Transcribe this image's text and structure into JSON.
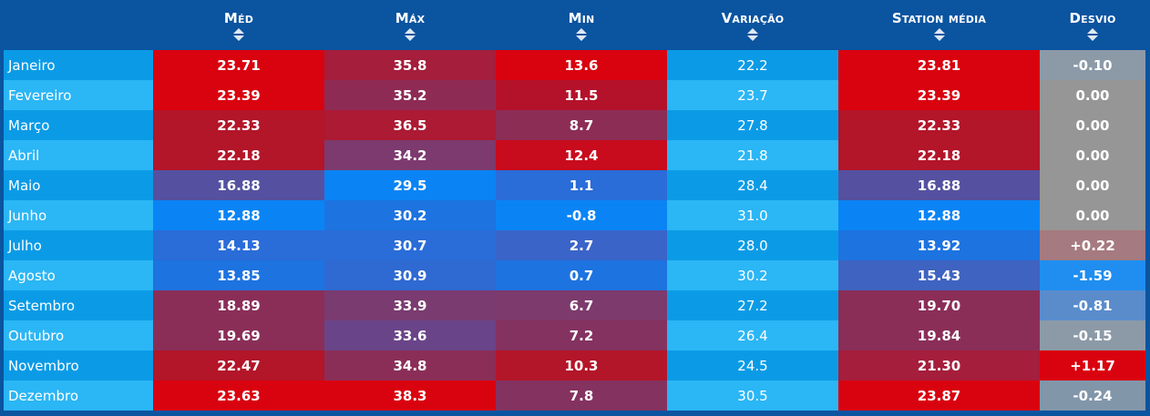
{
  "table": {
    "headers": {
      "med": "Méd",
      "max": "Máx",
      "min": "Min",
      "variacao": "Variação",
      "station": "Station média",
      "desvio": "Desvio"
    },
    "rows": [
      {
        "month": "Janeiro",
        "med": "23.71",
        "max": "35.8",
        "min": "13.6",
        "var": "22.2",
        "station": "23.81",
        "desvio": "-0.10",
        "colors": {
          "med": "#d9020f",
          "max": "#a51e3c",
          "min": "#d9020f",
          "station": "#d9020f",
          "desvio": "#8c9aa8"
        }
      },
      {
        "month": "Fevereiro",
        "med": "23.39",
        "max": "35.2",
        "min": "11.5",
        "var": "23.7",
        "station": "23.39",
        "desvio": "0.00",
        "colors": {
          "med": "#d9020f",
          "max": "#8e2b55",
          "min": "#b4122a",
          "station": "#d9020f",
          "desvio": "#969696"
        }
      },
      {
        "month": "Março",
        "med": "22.33",
        "max": "36.5",
        "min": "8.7",
        "var": "27.8",
        "station": "22.33",
        "desvio": "0.00",
        "colors": {
          "med": "#b31529",
          "max": "#ac1a33",
          "min": "#8c2d56",
          "station": "#b31529",
          "desvio": "#969696"
        }
      },
      {
        "month": "Abril",
        "med": "22.18",
        "max": "34.2",
        "min": "12.4",
        "var": "21.8",
        "station": "22.18",
        "desvio": "0.00",
        "colors": {
          "med": "#b31529",
          "max": "#7c3a6e",
          "min": "#c80b1d",
          "station": "#b31529",
          "desvio": "#969696"
        }
      },
      {
        "month": "Maio",
        "med": "16.88",
        "max": "29.5",
        "min": "1.1",
        "var": "28.4",
        "station": "16.88",
        "desvio": "0.00",
        "colors": {
          "med": "#5551a0",
          "max": "#0a84f5",
          "min": "#2a6cd8",
          "station": "#5551a0",
          "desvio": "#969696"
        }
      },
      {
        "month": "Junho",
        "med": "12.88",
        "max": "30.2",
        "min": "-0.8",
        "var": "31.0",
        "station": "12.88",
        "desvio": "0.00",
        "colors": {
          "med": "#0a84f5",
          "max": "#1d73e0",
          "min": "#0a84f5",
          "station": "#0a84f5",
          "desvio": "#969696"
        }
      },
      {
        "month": "Julho",
        "med": "14.13",
        "max": "30.7",
        "min": "2.7",
        "var": "28.0",
        "station": "13.92",
        "desvio": "+0.22",
        "colors": {
          "med": "#2a6cd8",
          "max": "#2a6cd8",
          "min": "#3a64c8",
          "station": "#1d73e0",
          "desvio": "#a57a80"
        }
      },
      {
        "month": "Agosto",
        "med": "13.85",
        "max": "30.9",
        "min": "0.7",
        "var": "30.2",
        "station": "15.43",
        "desvio": "-1.59",
        "colors": {
          "med": "#1d73e0",
          "max": "#2f69d2",
          "min": "#1d73e0",
          "station": "#3f63c0",
          "desvio": "#1f8ef0"
        }
      },
      {
        "month": "Setembro",
        "med": "18.89",
        "max": "33.9",
        "min": "6.7",
        "var": "27.2",
        "station": "19.70",
        "desvio": "-0.81",
        "colors": {
          "med": "#8a2e58",
          "max": "#7a3b70",
          "min": "#7d3a6d",
          "station": "#8a2e58",
          "desvio": "#5a8ccc"
        }
      },
      {
        "month": "Outubro",
        "med": "19.69",
        "max": "33.6",
        "min": "7.2",
        "var": "26.4",
        "station": "19.84",
        "desvio": "-0.15",
        "colors": {
          "med": "#8a2e58",
          "max": "#6a4488",
          "min": "#843260",
          "station": "#8a2e58",
          "desvio": "#8c9aa8"
        }
      },
      {
        "month": "Novembro",
        "med": "22.47",
        "max": "34.8",
        "min": "10.3",
        "var": "24.5",
        "station": "21.30",
        "desvio": "+1.17",
        "colors": {
          "med": "#b31529",
          "max": "#8a2e58",
          "min": "#b31529",
          "station": "#a51e3c",
          "desvio": "#d9020f"
        }
      },
      {
        "month": "Dezembro",
        "med": "23.63",
        "max": "38.3",
        "min": "7.8",
        "var": "30.5",
        "station": "23.87",
        "desvio": "-0.24",
        "colors": {
          "med": "#d9020f",
          "max": "#d9020f",
          "min": "#843260",
          "station": "#d9020f",
          "desvio": "#8296aa"
        }
      }
    ]
  }
}
